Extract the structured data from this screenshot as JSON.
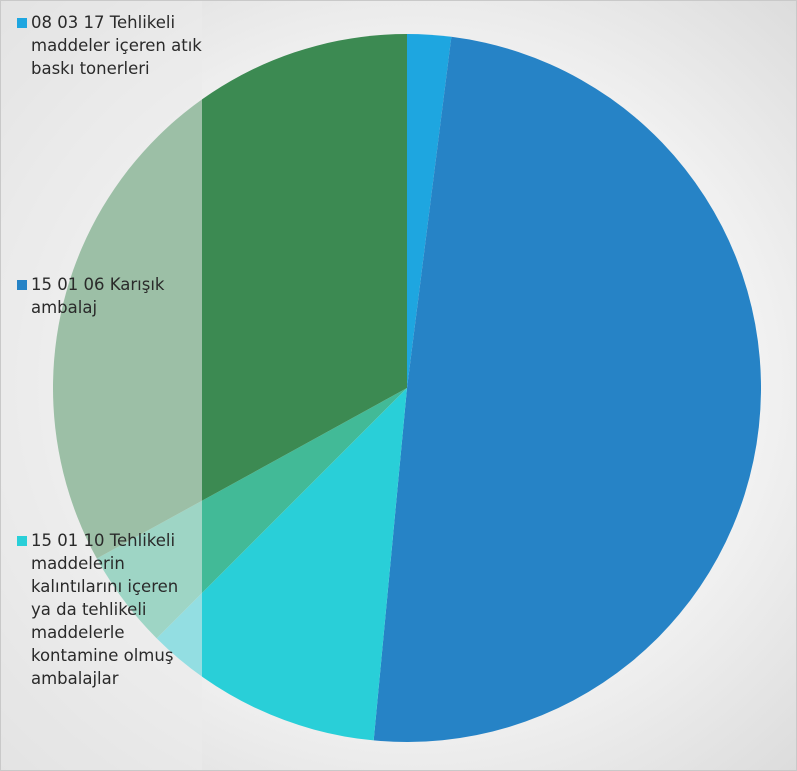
{
  "chart_data": {
    "type": "pie",
    "title": "",
    "legend_position": "left",
    "slices": [
      {
        "label": "08 03 17 Tehlikeli maddeler içeren atık baskı tonerleri",
        "value": 2.0,
        "color": "#1ea6e0"
      },
      {
        "label": "15 01 06 Karışık ambalaj",
        "value": 49.5,
        "color": "#2683c6"
      },
      {
        "label": "15 01 10 Tehlikeli maddelerin kalıntılarını içeren ya da tehlikeli maddelerle kontamine olmuş ambalajlar",
        "value": 11.0,
        "color": "#29cfd8"
      },
      {
        "label": "",
        "value": 4.5,
        "color": "#42ba97"
      },
      {
        "label": "",
        "value": 33.0,
        "color": "#3c8a52"
      }
    ]
  }
}
